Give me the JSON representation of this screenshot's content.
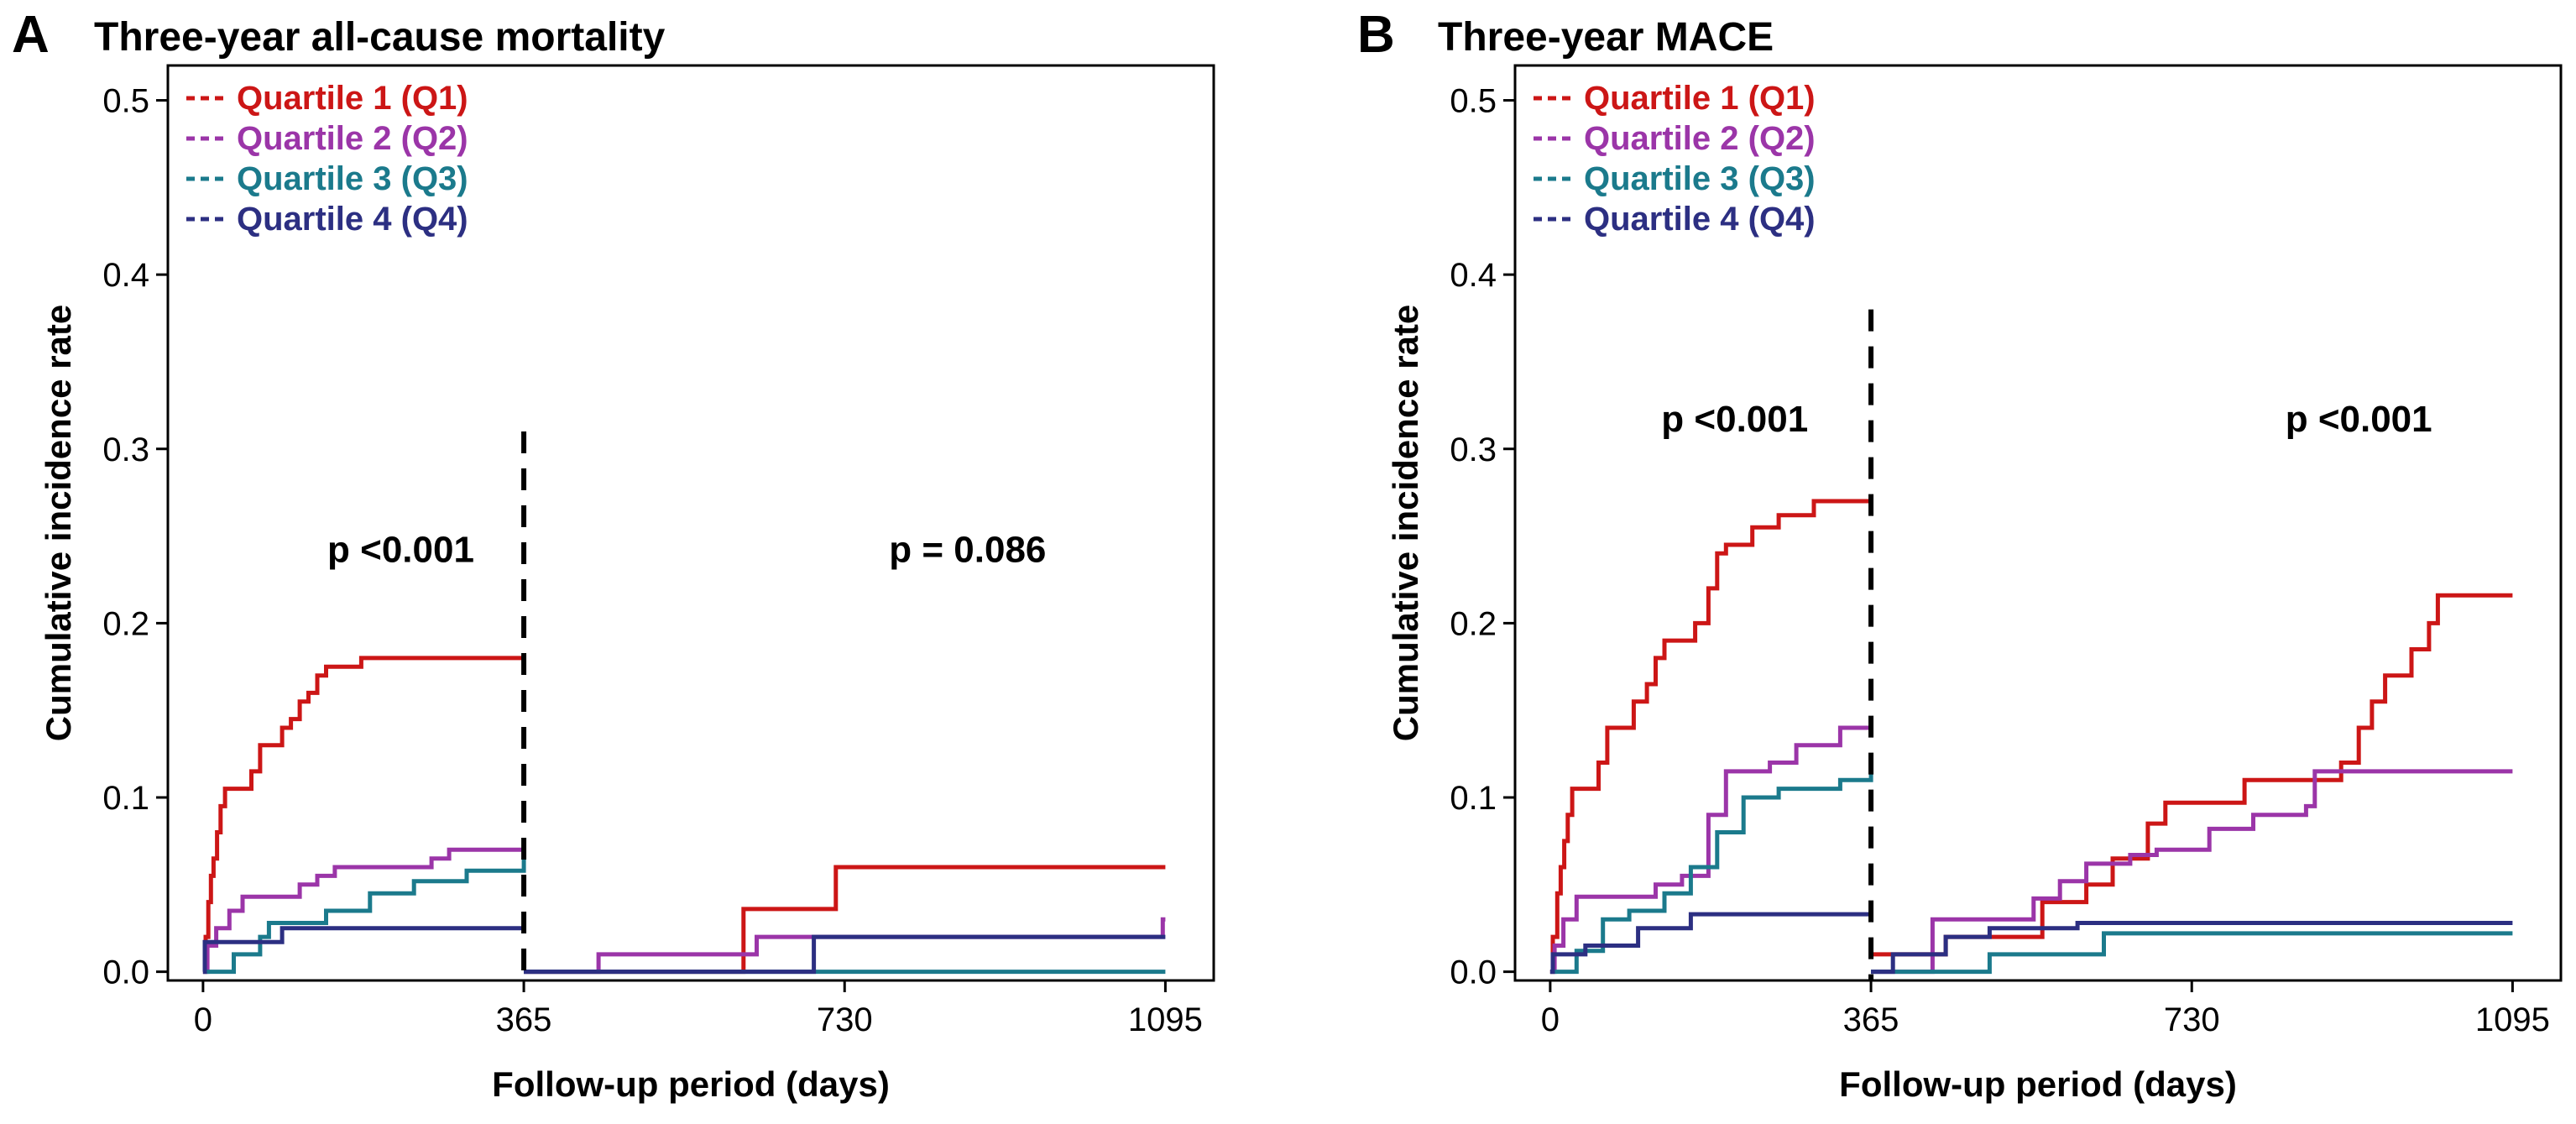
{
  "colors": {
    "q1": "#cc1616",
    "q2": "#9b35a8",
    "q3": "#1b7a8c",
    "q4": "#2c2f82"
  },
  "chart_data": [
    {
      "type": "line",
      "panel_letter": "A",
      "title": "Three-year all-cause mortality",
      "xlabel": "Follow-up period (days)",
      "ylabel": "Cumulative incidence rate",
      "xlim": [
        -40,
        1150
      ],
      "ylim": [
        -0.005,
        0.52
      ],
      "x_ticks": [
        0,
        365,
        730,
        1095
      ],
      "x_tick_labels": [
        "0",
        "365",
        "730",
        "1095"
      ],
      "y_ticks": [
        0.0,
        0.1,
        0.2,
        0.3,
        0.4,
        0.5
      ],
      "y_tick_labels": [
        "0.0",
        "0.1",
        "0.2",
        "0.3",
        "0.4",
        "0.5"
      ],
      "legend_position": "top-left",
      "landmark_day": 365,
      "landmark_line_top": 0.31,
      "annotations": [
        {
          "text": "p <0.001",
          "x": 225,
          "y": 0.235
        },
        {
          "text": "p = 0.086",
          "x": 870,
          "y": 0.235
        }
      ],
      "series": [
        {
          "name": "Quartile 1 (Q1)",
          "color_key": "q1",
          "segments": [
            [
              [
                0,
                0
              ],
              [
                3,
                0.02
              ],
              [
                6,
                0.04
              ],
              [
                9,
                0.055
              ],
              [
                12,
                0.065
              ],
              [
                16,
                0.08
              ],
              [
                20,
                0.095
              ],
              [
                25,
                0.105
              ],
              [
                45,
                0.105
              ],
              [
                55,
                0.115
              ],
              [
                65,
                0.13
              ],
              [
                80,
                0.13
              ],
              [
                90,
                0.14
              ],
              [
                100,
                0.145
              ],
              [
                110,
                0.155
              ],
              [
                120,
                0.16
              ],
              [
                130,
                0.17
              ],
              [
                140,
                0.175
              ],
              [
                175,
                0.175
              ],
              [
                180,
                0.18
              ],
              [
                365,
                0.182
              ]
            ],
            [
              [
                365,
                0.0
              ],
              [
                615,
                0.0
              ],
              [
                615,
                0.036
              ],
              [
                720,
                0.036
              ],
              [
                720,
                0.06
              ],
              [
                1095,
                0.06
              ]
            ]
          ]
        },
        {
          "name": "Quartile 2 (Q2)",
          "color_key": "q2",
          "segments": [
            [
              [
                0,
                0
              ],
              [
                5,
                0.015
              ],
              [
                15,
                0.025
              ],
              [
                30,
                0.035
              ],
              [
                45,
                0.043
              ],
              [
                110,
                0.05
              ],
              [
                130,
                0.055
              ],
              [
                150,
                0.06
              ],
              [
                260,
                0.065
              ],
              [
                280,
                0.07
              ],
              [
                365,
                0.07
              ]
            ],
            [
              [
                365,
                0.0
              ],
              [
                450,
                0.0
              ],
              [
                450,
                0.01
              ],
              [
                630,
                0.01
              ],
              [
                630,
                0.02
              ],
              [
                1092,
                0.02
              ],
              [
                1092,
                0.03
              ],
              [
                1095,
                0.03
              ]
            ]
          ]
        },
        {
          "name": "Quartile 3 (Q3)",
          "color_key": "q3",
          "segments": [
            [
              [
                0,
                0
              ],
              [
                25,
                0
              ],
              [
                35,
                0.01
              ],
              [
                65,
                0.02
              ],
              [
                75,
                0.028
              ],
              [
                130,
                0.028
              ],
              [
                140,
                0.035
              ],
              [
                190,
                0.045
              ],
              [
                240,
                0.052
              ],
              [
                300,
                0.058
              ],
              [
                365,
                0.065
              ]
            ],
            [
              [
                365,
                0.0
              ],
              [
                1095,
                0.0
              ]
            ]
          ]
        },
        {
          "name": "Quartile 4 (Q4)",
          "color_key": "q4",
          "segments": [
            [
              [
                0,
                0
              ],
              [
                2,
                0.017
              ],
              [
                80,
                0.017
              ],
              [
                90,
                0.025
              ],
              [
                365,
                0.025
              ]
            ],
            [
              [
                365,
                0.0
              ],
              [
                695,
                0.0
              ],
              [
                695,
                0.02
              ],
              [
                1095,
                0.02
              ]
            ]
          ]
        }
      ]
    },
    {
      "type": "line",
      "panel_letter": "B",
      "title": "Three-year MACE",
      "xlabel": "Follow-up period (days)",
      "ylabel": "Cumulative incidence rate",
      "xlim": [
        -40,
        1150
      ],
      "ylim": [
        -0.005,
        0.52
      ],
      "x_ticks": [
        0,
        365,
        730,
        1095
      ],
      "x_tick_labels": [
        "0",
        "365",
        "730",
        "1095"
      ],
      "y_ticks": [
        0.0,
        0.1,
        0.2,
        0.3,
        0.4,
        0.5
      ],
      "y_tick_labels": [
        "0.0",
        "0.1",
        "0.2",
        "0.3",
        "0.4",
        "0.5"
      ],
      "legend_position": "top-left",
      "landmark_day": 365,
      "landmark_line_top": 0.38,
      "annotations": [
        {
          "text": "p <0.001",
          "x": 210,
          "y": 0.31
        },
        {
          "text": "p <0.001",
          "x": 920,
          "y": 0.31
        }
      ],
      "series": [
        {
          "name": "Quartile 1 (Q1)",
          "color_key": "q1",
          "segments": [
            [
              [
                0,
                0
              ],
              [
                3,
                0.02
              ],
              [
                8,
                0.045
              ],
              [
                12,
                0.06
              ],
              [
                16,
                0.075
              ],
              [
                20,
                0.09
              ],
              [
                25,
                0.105
              ],
              [
                45,
                0.105
              ],
              [
                55,
                0.12
              ],
              [
                65,
                0.14
              ],
              [
                80,
                0.14
              ],
              [
                95,
                0.155
              ],
              [
                110,
                0.165
              ],
              [
                120,
                0.18
              ],
              [
                130,
                0.19
              ],
              [
                155,
                0.19
              ],
              [
                165,
                0.2
              ],
              [
                180,
                0.22
              ],
              [
                190,
                0.24
              ],
              [
                200,
                0.245
              ],
              [
                230,
                0.255
              ],
              [
                260,
                0.262
              ],
              [
                300,
                0.27
              ],
              [
                365,
                0.27
              ]
            ],
            [
              [
                365,
                0.01
              ],
              [
                450,
                0.01
              ],
              [
                450,
                0.02
              ],
              [
                560,
                0.02
              ],
              [
                560,
                0.04
              ],
              [
                610,
                0.05
              ],
              [
                640,
                0.065
              ],
              [
                680,
                0.085
              ],
              [
                700,
                0.097
              ],
              [
                780,
                0.097
              ],
              [
                790,
                0.11
              ],
              [
                880,
                0.11
              ],
              [
                900,
                0.12
              ],
              [
                920,
                0.14
              ],
              [
                935,
                0.155
              ],
              [
                950,
                0.17
              ],
              [
                980,
                0.185
              ],
              [
                1000,
                0.2
              ],
              [
                1010,
                0.216
              ],
              [
                1095,
                0.216
              ]
            ]
          ]
        },
        {
          "name": "Quartile 2 (Q2)",
          "color_key": "q2",
          "segments": [
            [
              [
                0,
                0
              ],
              [
                5,
                0.015
              ],
              [
                15,
                0.03
              ],
              [
                30,
                0.043
              ],
              [
                120,
                0.05
              ],
              [
                150,
                0.055
              ],
              [
                180,
                0.09
              ],
              [
                200,
                0.115
              ],
              [
                250,
                0.12
              ],
              [
                280,
                0.13
              ],
              [
                330,
                0.14
              ],
              [
                365,
                0.14
              ]
            ],
            [
              [
                365,
                0.0
              ],
              [
                435,
                0.0
              ],
              [
                435,
                0.03
              ],
              [
                540,
                0.03
              ],
              [
                550,
                0.042
              ],
              [
                580,
                0.052
              ],
              [
                610,
                0.062
              ],
              [
                660,
                0.067
              ],
              [
                690,
                0.07
              ],
              [
                750,
                0.082
              ],
              [
                800,
                0.09
              ],
              [
                860,
                0.095
              ],
              [
                870,
                0.115
              ],
              [
                1095,
                0.115
              ]
            ]
          ]
        },
        {
          "name": "Quartile 3 (Q3)",
          "color_key": "q3",
          "segments": [
            [
              [
                0,
                0
              ],
              [
                20,
                0
              ],
              [
                30,
                0.012
              ],
              [
                60,
                0.03
              ],
              [
                90,
                0.035
              ],
              [
                130,
                0.045
              ],
              [
                160,
                0.06
              ],
              [
                190,
                0.08
              ],
              [
                220,
                0.1
              ],
              [
                260,
                0.105
              ],
              [
                330,
                0.11
              ],
              [
                365,
                0.125
              ]
            ],
            [
              [
                365,
                0.0
              ],
              [
                500,
                0.0
              ],
              [
                500,
                0.01
              ],
              [
                630,
                0.01
              ],
              [
                630,
                0.022
              ],
              [
                1095,
                0.022
              ]
            ]
          ]
        },
        {
          "name": "Quartile 4 (Q4)",
          "color_key": "q4",
          "segments": [
            [
              [
                0,
                0
              ],
              [
                3,
                0.01
              ],
              [
                40,
                0.015
              ],
              [
                100,
                0.025
              ],
              [
                160,
                0.033
              ],
              [
                365,
                0.033
              ]
            ],
            [
              [
                365,
                0.0
              ],
              [
                390,
                0.0
              ],
              [
                390,
                0.01
              ],
              [
                440,
                0.01
              ],
              [
                450,
                0.02
              ],
              [
                500,
                0.025
              ],
              [
                600,
                0.028
              ],
              [
                1095,
                0.028
              ]
            ]
          ]
        }
      ]
    }
  ]
}
